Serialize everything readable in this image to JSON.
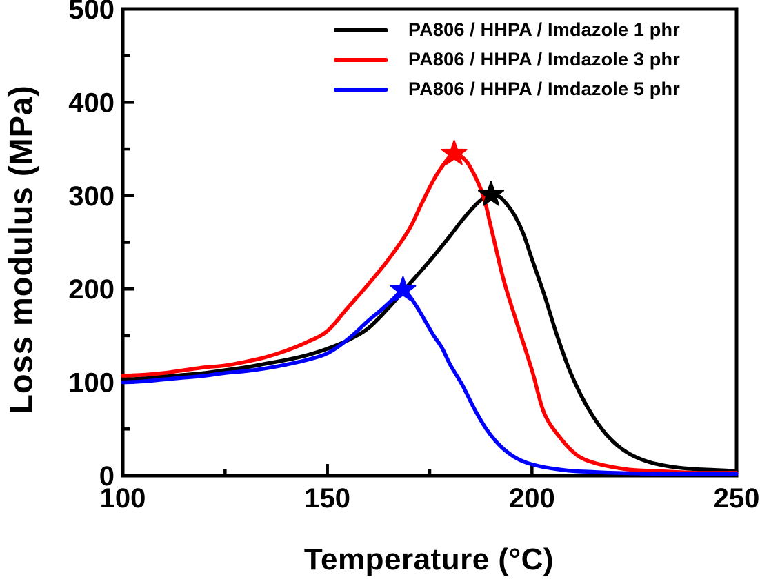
{
  "chart_data": {
    "type": "line",
    "title": "",
    "xlabel": "Temperature (°C)",
    "ylabel": "Loss modulus (MPa)",
    "xlim": [
      100,
      250
    ],
    "ylim": [
      0,
      500
    ],
    "xticks": [
      100,
      150,
      200,
      250
    ],
    "xticks_minor": [
      125,
      175,
      225
    ],
    "yticks": [
      0,
      100,
      200,
      300,
      400,
      500
    ],
    "yticks_minor": [
      50,
      150,
      250,
      350,
      450
    ],
    "grid": false,
    "legend_position": "top-right-inside",
    "axis_color": "#000000",
    "background_color": "#ffffff",
    "series": [
      {
        "name": "PA806 / HHPA / Imdazole 1 phr",
        "color": "#000000",
        "marker": "star-at-peak",
        "peak": {
          "x": 190,
          "y": 301
        },
        "x": [
          100,
          105,
          110,
          115,
          120,
          125,
          130,
          135,
          140,
          145,
          150,
          155,
          160,
          165,
          170,
          175,
          180,
          183,
          186,
          188,
          190,
          192,
          194,
          196,
          198,
          200,
          203,
          206,
          209,
          212,
          215,
          218,
          221,
          224,
          227,
          230,
          235,
          240,
          245,
          250
        ],
        "y": [
          103,
          104,
          106,
          108,
          110,
          113,
          116,
          120,
          124,
          129,
          136,
          145,
          158,
          180,
          205,
          230,
          257,
          274,
          289,
          297,
          301,
          299,
          290,
          277,
          258,
          232,
          194,
          152,
          115,
          86,
          63,
          45,
          32,
          23,
          17,
          13,
          9,
          7,
          6,
          5
        ]
      },
      {
        "name": "PA806 / HHPA / Imdazole 3 phr",
        "color": "#ff0000",
        "marker": "star-at-peak",
        "peak": {
          "x": 181,
          "y": 345
        },
        "x": [
          100,
          105,
          110,
          115,
          120,
          125,
          130,
          135,
          140,
          145,
          150,
          155,
          160,
          165,
          170,
          173,
          176,
          179,
          181,
          183,
          185,
          188,
          190,
          193,
          196,
          200,
          203,
          207,
          211,
          215,
          220,
          225,
          230,
          235,
          240,
          245,
          250
        ],
        "y": [
          107,
          108,
          110,
          113,
          116,
          118,
          122,
          127,
          134,
          143,
          155,
          180,
          205,
          232,
          264,
          291,
          317,
          337,
          345,
          341,
          330,
          301,
          266,
          211,
          168,
          113,
          67,
          40,
          22,
          14,
          9,
          6,
          5,
          4,
          3,
          3,
          3
        ]
      },
      {
        "name": "PA806 / HHPA / Imdazole 5 phr",
        "color": "#0000ff",
        "marker": "star-at-peak",
        "peak": {
          "x": 168.5,
          "y": 199
        },
        "x": [
          100,
          105,
          110,
          115,
          120,
          125,
          130,
          135,
          140,
          145,
          150,
          155,
          160,
          163,
          166,
          168.5,
          170,
          172,
          174,
          176,
          178,
          180,
          183,
          186,
          189,
          192,
          195,
          198,
          202,
          206,
          210,
          215,
          220,
          230,
          240,
          250
        ],
        "y": [
          100,
          101,
          103,
          105,
          107,
          110,
          112,
          115,
          119,
          124,
          131,
          146,
          166,
          177,
          189,
          199,
          193,
          180,
          165,
          150,
          137,
          119,
          97,
          71,
          49,
          33,
          22,
          15,
          10,
          7,
          5,
          4,
          3,
          2,
          2,
          2
        ]
      }
    ]
  }
}
